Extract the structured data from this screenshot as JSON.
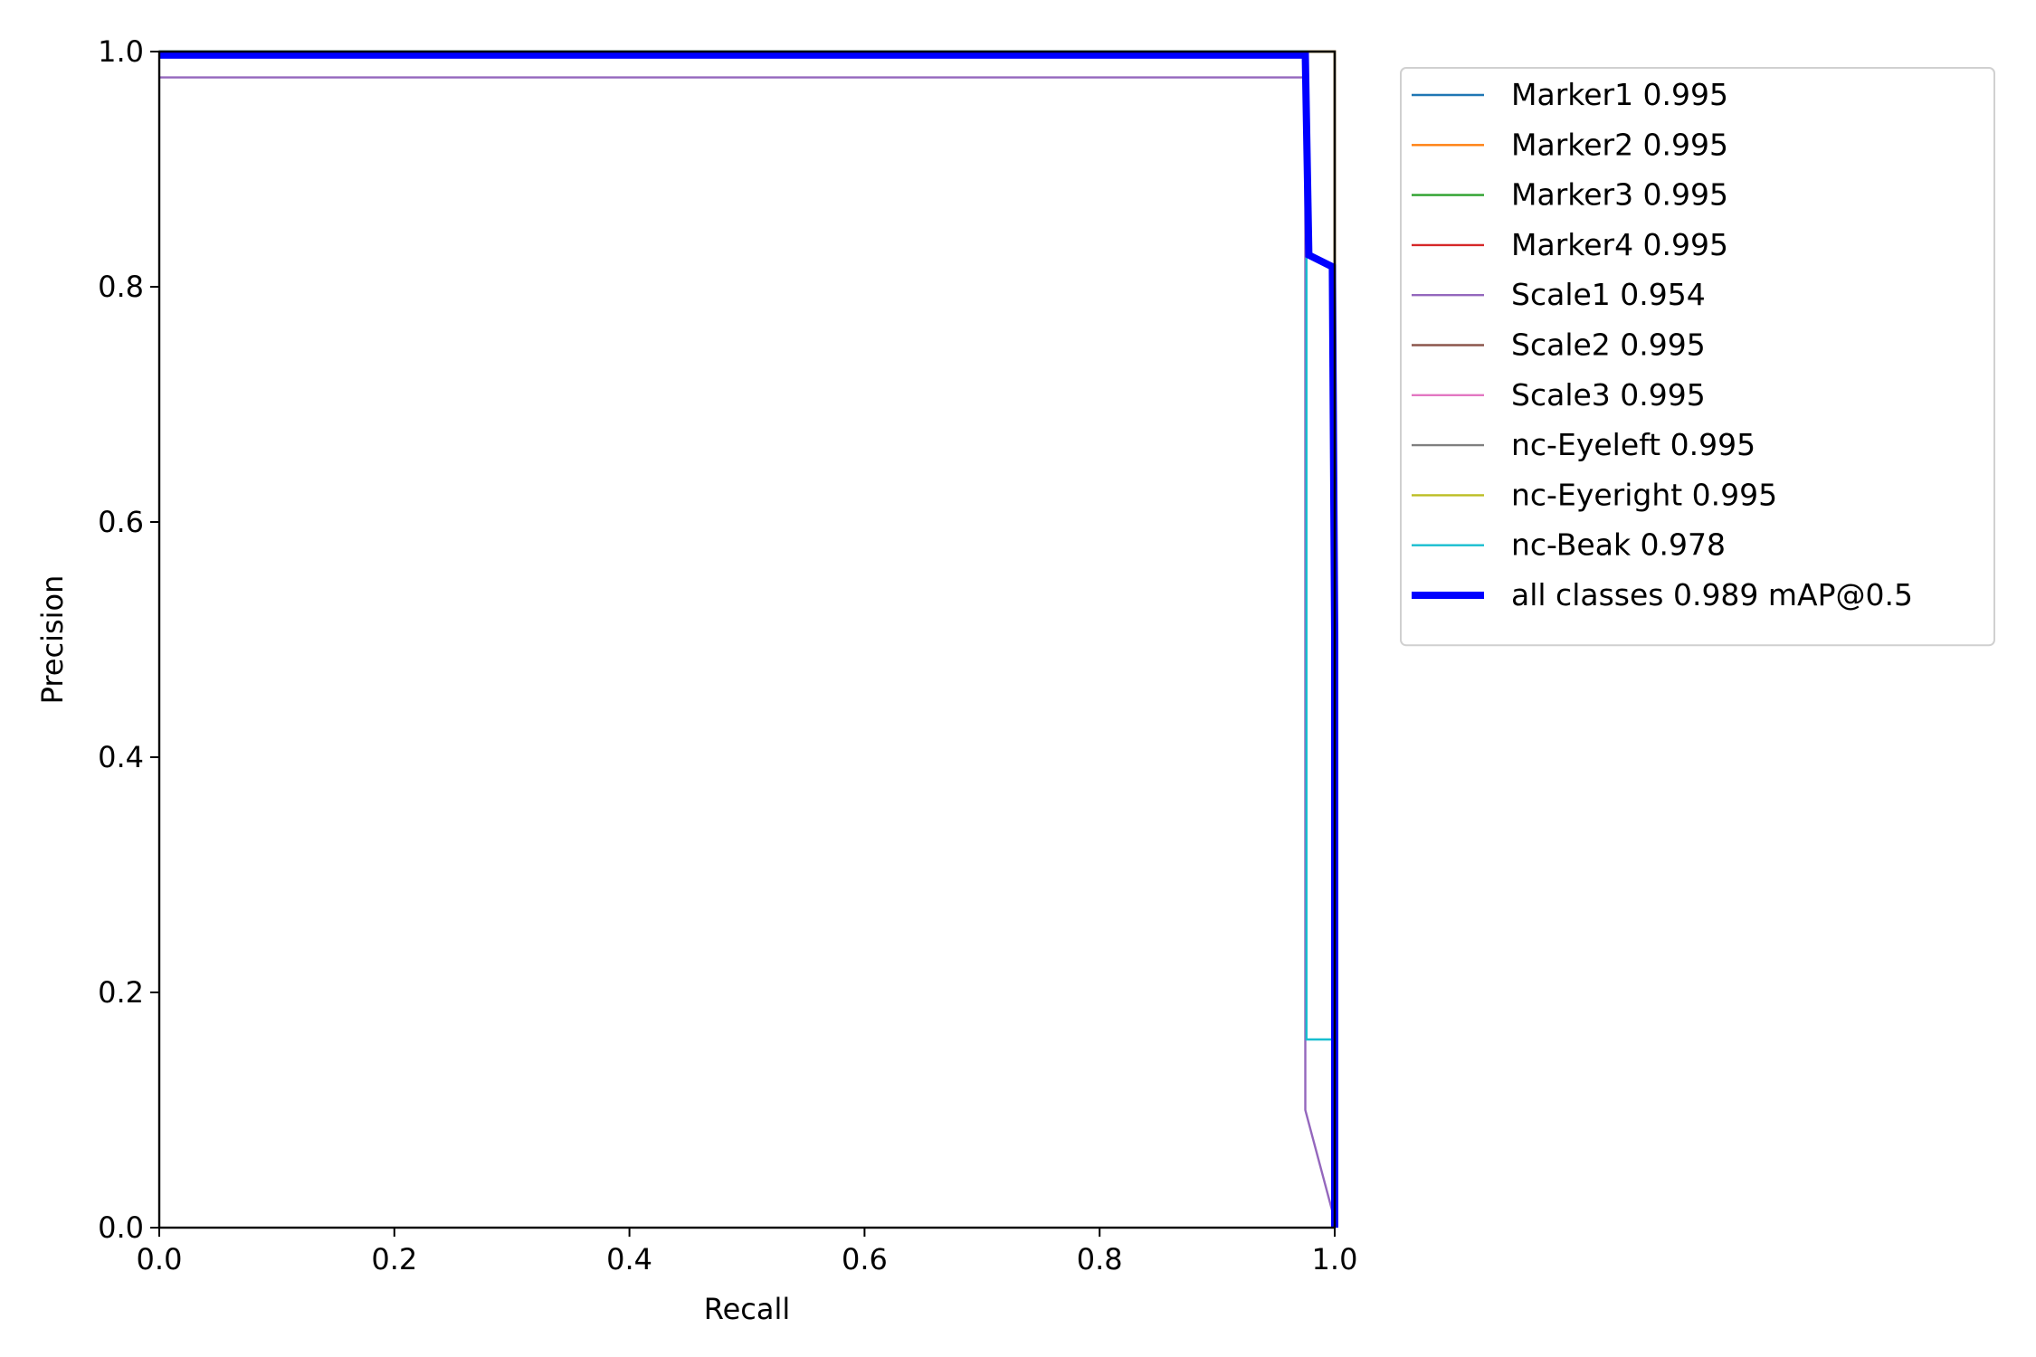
{
  "chart_data": {
    "type": "line",
    "xlabel": "Recall",
    "ylabel": "Precision",
    "xlim": [
      0,
      1
    ],
    "ylim": [
      0,
      1
    ],
    "x_ticks": [
      "0.0",
      "0.2",
      "0.4",
      "0.6",
      "0.8",
      "1.0"
    ],
    "y_ticks": [
      "0.0",
      "0.2",
      "0.4",
      "0.6",
      "0.8",
      "1.0"
    ],
    "grid": false,
    "legend_position": "outside-right-top",
    "series": [
      {
        "name": "Marker1 0.995",
        "color": "#1f77b4",
        "x": [
          0,
          1,
          1
        ],
        "y": [
          1,
          1,
          0
        ]
      },
      {
        "name": "Marker2 0.995",
        "color": "#ff7f0e",
        "x": [
          0,
          1,
          1
        ],
        "y": [
          1,
          1,
          0
        ]
      },
      {
        "name": "Marker3 0.995",
        "color": "#2ca02c",
        "x": [
          0,
          1,
          1
        ],
        "y": [
          1,
          1,
          0
        ]
      },
      {
        "name": "Marker4 0.995",
        "color": "#d62728",
        "x": [
          0,
          1,
          1
        ],
        "y": [
          1,
          1,
          0
        ]
      },
      {
        "name": "Scale1 0.954",
        "color": "#9467bd",
        "x": [
          0,
          0.975,
          0.975,
          0.999,
          1.0
        ],
        "y": [
          0.978,
          0.978,
          0.1,
          0.01,
          0.0
        ]
      },
      {
        "name": "Scale2 0.995",
        "color": "#8c564b",
        "x": [
          0,
          1,
          1
        ],
        "y": [
          1,
          1,
          0
        ]
      },
      {
        "name": "Scale3 0.995",
        "color": "#e377c2",
        "x": [
          0,
          1,
          1
        ],
        "y": [
          1,
          1,
          0
        ]
      },
      {
        "name": "nc-Eyeleft 0.995",
        "color": "#7f7f7f",
        "x": [
          0,
          1,
          1
        ],
        "y": [
          1,
          1,
          0
        ]
      },
      {
        "name": "nc-Eyeright 0.995",
        "color": "#bcbd22",
        "x": [
          0,
          1,
          1,
          1,
          1
        ],
        "y": [
          1,
          1,
          0.83,
          0.83,
          0
        ]
      },
      {
        "name": "nc-Beak 0.978",
        "color": "#17becf",
        "x": [
          0,
          0.976,
          0.976,
          0.976,
          1.0,
          1.0
        ],
        "y": [
          1,
          1,
          0.83,
          0.16,
          0.16,
          0
        ]
      },
      {
        "name": "all classes 0.989 mAP@0.5",
        "color": "#0000ff",
        "bold": true,
        "x": [
          0,
          0.975,
          0.978,
          0.998,
          1.0,
          1.0
        ],
        "y": [
          0.997,
          0.997,
          0.827,
          0.817,
          0.5,
          0.0
        ]
      }
    ]
  }
}
